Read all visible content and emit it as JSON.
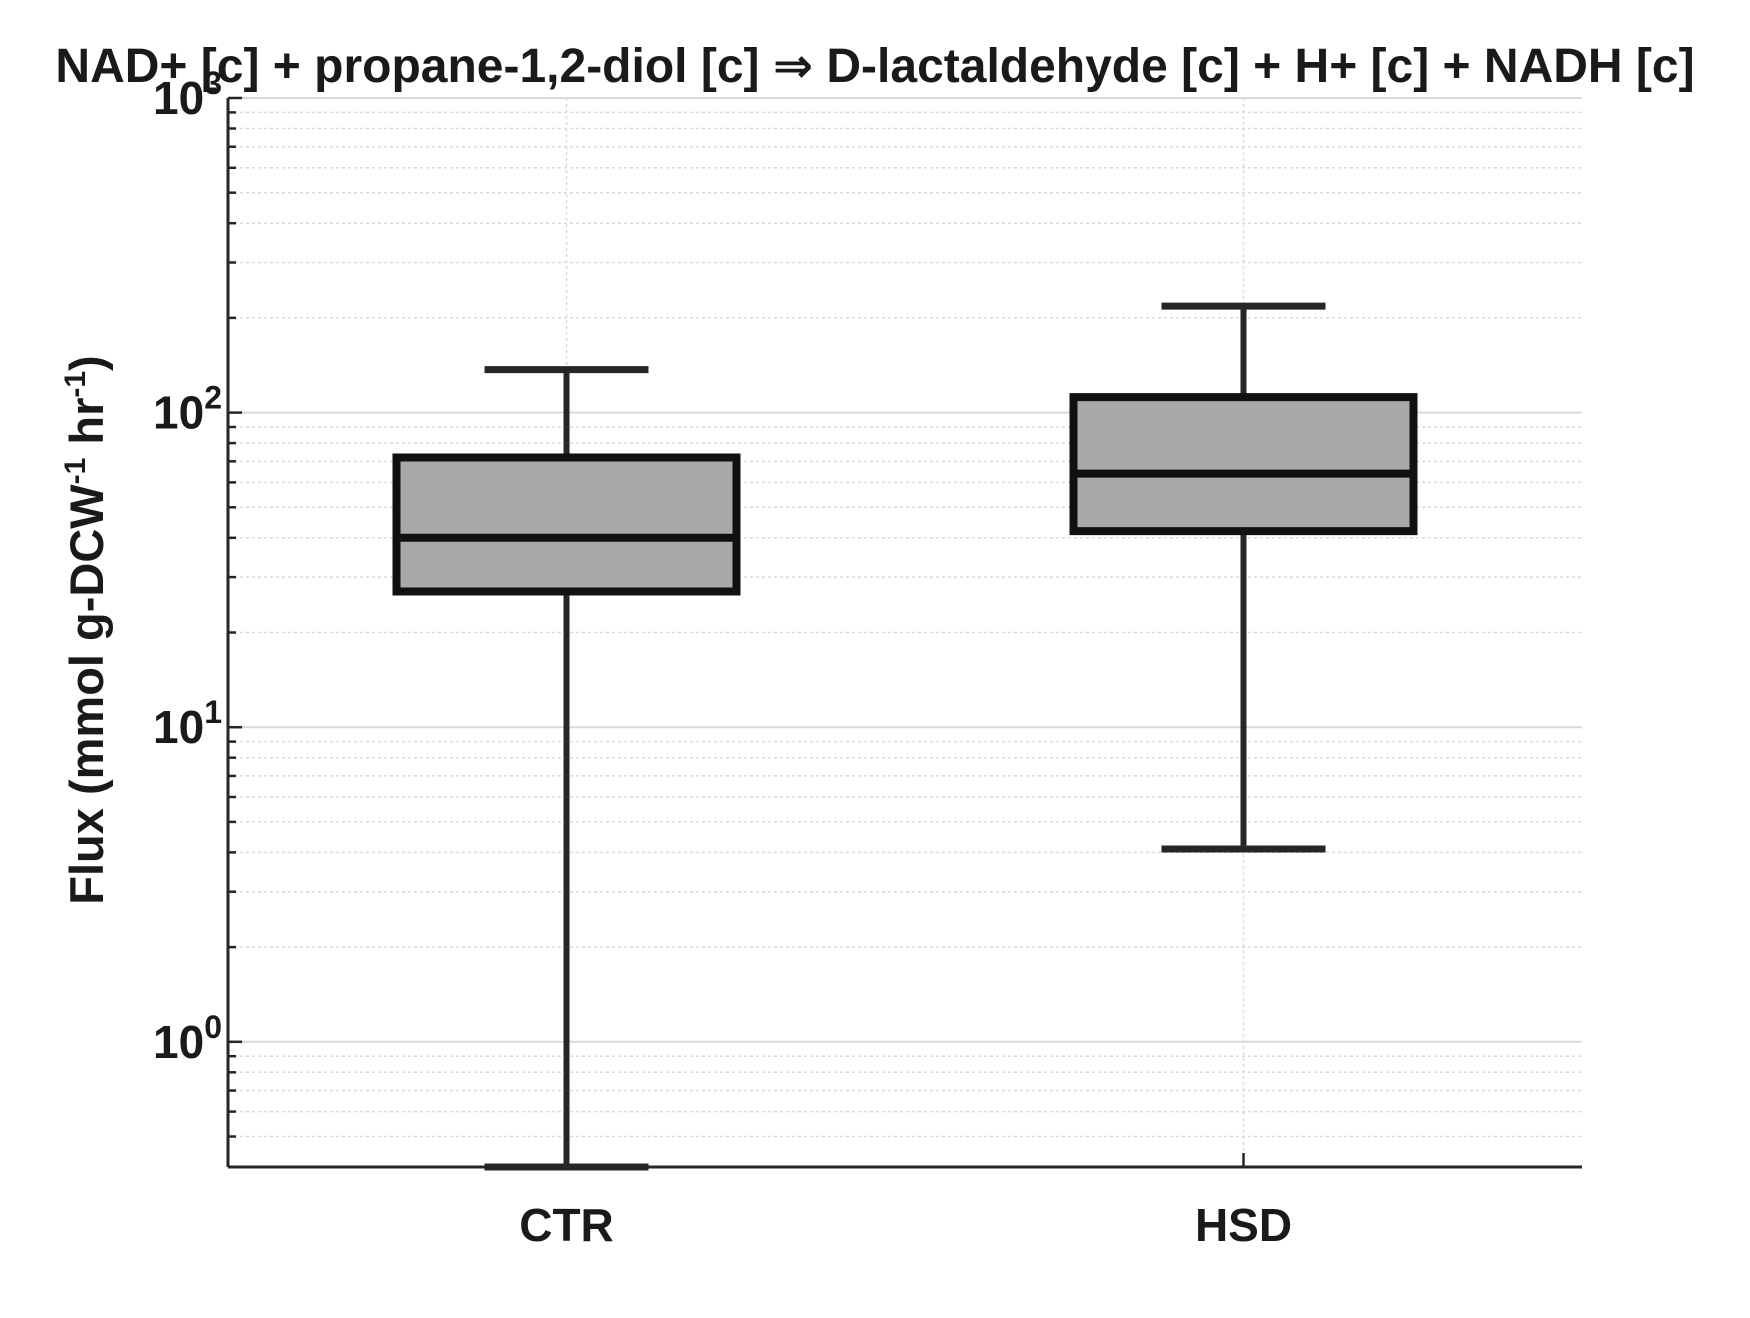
{
  "chart_data": {
    "type": "box",
    "title": "NAD+ [c] + propane-1,2-diol [c] ⇒ D-lactaldehyde [c] + H+ [c] + NADH [c]",
    "xlabel": "",
    "ylabel": "Flux (mmol g-DCW-1 hr-1)",
    "ylabel_parts": {
      "prefix": "Flux (mmol g-DCW",
      "sup1": "-1",
      "middle": " hr",
      "sup2": "-1",
      "suffix": ")"
    },
    "yscale": "log",
    "ylim": [
      0.4,
      1000
    ],
    "yticks": [
      {
        "value": 1,
        "base": "10",
        "exp": "0"
      },
      {
        "value": 10,
        "base": "10",
        "exp": "1"
      },
      {
        "value": 100,
        "base": "10",
        "exp": "2"
      },
      {
        "value": 1000,
        "base": "10",
        "exp": "3"
      }
    ],
    "grid": true,
    "categories": [
      "CTR",
      "HSD"
    ],
    "boxes": [
      {
        "category": "CTR",
        "whisker_low": 0.4,
        "q1": 27,
        "median": 40,
        "q3": 72,
        "whisker_high": 137
      },
      {
        "category": "HSD",
        "whisker_low": 4.1,
        "q1": 42,
        "median": 64,
        "q3": 112,
        "whisker_high": 218
      }
    ],
    "colors": {
      "box_fill": "#a9a9a9",
      "box_edge": "#111111",
      "whisker": "#262626",
      "grid": "#d9d9d9",
      "axis": "#262626"
    }
  }
}
